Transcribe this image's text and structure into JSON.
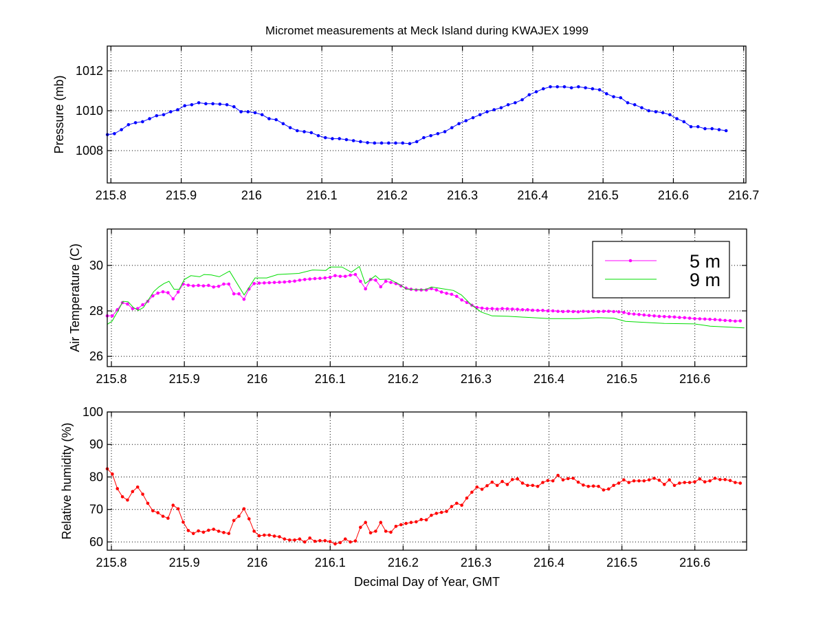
{
  "chart_data": {
    "title": "Micromet measurements at Meck Island during KWAJEX 1999",
    "xlabel": "Decimal Day of Year, GMT",
    "panels": [
      {
        "type": "line",
        "ylabel": "Pressure (mb)",
        "xlim": [
          215.7948,
          216.7032
        ],
        "ylim": [
          1006.38,
          1013.24
        ],
        "xticks": [
          "215.8",
          "215.9",
          "216",
          "216.1",
          "216.2",
          "216.3",
          "216.4",
          "216.5",
          "216.6",
          "216.7"
        ],
        "yticks": [
          "1008",
          "1010",
          "1012"
        ],
        "grid": true,
        "series": [
          {
            "name": "Pressure",
            "color": "#0000ff",
            "marker": "dot",
            "x_start": 215.795,
            "x_step": 0.01,
            "values": [
              1008.8,
              1008.85,
              1009.05,
              1009.3,
              1009.4,
              1009.45,
              1009.6,
              1009.75,
              1009.8,
              1009.95,
              1010.05,
              1010.25,
              1010.3,
              1010.4,
              1010.35,
              1010.35,
              1010.33,
              1010.3,
              1010.2,
              1009.95,
              1009.95,
              1009.9,
              1009.8,
              1009.6,
              1009.55,
              1009.35,
              1009.15,
              1009.0,
              1008.95,
              1008.9,
              1008.75,
              1008.65,
              1008.6,
              1008.6,
              1008.55,
              1008.5,
              1008.45,
              1008.4,
              1008.38,
              1008.38,
              1008.38,
              1008.38,
              1008.38,
              1008.35,
              1008.45,
              1008.65,
              1008.75,
              1008.85,
              1008.95,
              1009.15,
              1009.35,
              1009.5,
              1009.65,
              1009.8,
              1009.95,
              1010.05,
              1010.15,
              1010.3,
              1010.4,
              1010.55,
              1010.8,
              1010.95,
              1011.1,
              1011.2,
              1011.2,
              1011.2,
              1011.15,
              1011.2,
              1011.15,
              1011.1,
              1011.05,
              1010.85,
              1010.7,
              1010.65,
              1010.4,
              1010.3,
              1010.15,
              1010.0,
              1009.95,
              1009.9,
              1009.8,
              1009.6,
              1009.45,
              1009.2,
              1009.2,
              1009.1,
              1009.1,
              1009.05,
              1009.0
            ]
          }
        ]
      },
      {
        "type": "line",
        "ylabel": "Air Temperature (C)",
        "xlim": [
          215.7943,
          216.671
        ],
        "ylim": [
          25.55,
          31.6
        ],
        "xticks": [
          "215.8",
          "215.9",
          "216",
          "216.1",
          "216.2",
          "216.3",
          "216.4",
          "216.5",
          "216.6"
        ],
        "yticks": [
          "26",
          "28",
          "30"
        ],
        "grid": true,
        "legend": {
          "placement": "top-right",
          "entries": [
            "5 m",
            "9 m"
          ]
        },
        "series": [
          {
            "name": "5 m",
            "color": "#ff00ff",
            "marker": "dot",
            "x_start": 215.7943,
            "x_step": 0.006944,
            "values": [
              27.78,
              27.78,
              28.05,
              28.36,
              28.3,
              28.1,
              28.1,
              28.27,
              28.42,
              28.66,
              28.78,
              28.84,
              28.8,
              28.53,
              28.83,
              29.18,
              29.13,
              29.1,
              29.12,
              29.1,
              29.12,
              29.05,
              29.08,
              29.18,
              29.18,
              28.75,
              28.75,
              28.51,
              28.96,
              29.2,
              29.22,
              29.23,
              29.24,
              29.25,
              29.26,
              29.27,
              29.29,
              29.31,
              29.35,
              29.38,
              29.4,
              29.42,
              29.43,
              29.45,
              29.48,
              29.55,
              29.52,
              29.52,
              29.57,
              29.6,
              29.3,
              28.97,
              29.38,
              29.35,
              29.06,
              29.3,
              29.25,
              29.2,
              29.1,
              29.0,
              28.95,
              28.92,
              28.92,
              28.92,
              28.98,
              28.92,
              28.83,
              28.77,
              28.73,
              28.64,
              28.48,
              28.37,
              28.25,
              28.15,
              28.12,
              28.1,
              28.1,
              28.08,
              28.1,
              28.09,
              28.08,
              28.07,
              28.05,
              28.05,
              28.03,
              28.02,
              28.02,
              28.0,
              28.0,
              27.98,
              27.97,
              27.98,
              27.97,
              27.96,
              27.98,
              27.97,
              27.98,
              27.97,
              27.98,
              27.98,
              27.97,
              27.96,
              27.93,
              27.88,
              27.86,
              27.84,
              27.82,
              27.8,
              27.78,
              27.76,
              27.75,
              27.74,
              27.73,
              27.71,
              27.7,
              27.68,
              27.66,
              27.65,
              27.64,
              27.63,
              27.62,
              27.6,
              27.58,
              27.57,
              27.55,
              27.56
            ]
          },
          {
            "name": "9 m",
            "color": "#00dd00",
            "marker": "none",
            "x": [
              215.794,
              215.801,
              215.809,
              215.816,
              215.823,
              215.83,
              215.837,
              215.844,
              215.851,
              215.858,
              215.865,
              215.872,
              215.879,
              215.886,
              215.893,
              215.9,
              215.909,
              215.921,
              215.927,
              215.937,
              215.948,
              215.962,
              215.982,
              215.997,
              216.013,
              216.028,
              216.057,
              216.076,
              216.094,
              216.1,
              216.116,
              216.129,
              216.14,
              216.148,
              216.162,
              216.168,
              216.181,
              216.196,
              216.205,
              216.23,
              216.239,
              216.253,
              216.269,
              216.28,
              216.294,
              216.307,
              216.322,
              216.344,
              216.401,
              216.439,
              216.467,
              216.489,
              216.505,
              216.558,
              216.599,
              216.621,
              216.668
            ],
            "y": [
              27.4,
              27.55,
              28.0,
              28.42,
              28.4,
              28.15,
              28.02,
              28.15,
              28.5,
              28.85,
              29.05,
              29.2,
              29.3,
              28.95,
              28.95,
              29.38,
              29.55,
              29.5,
              29.6,
              29.58,
              29.5,
              29.75,
              28.7,
              29.45,
              29.45,
              29.6,
              29.65,
              29.8,
              29.78,
              29.93,
              29.93,
              29.7,
              29.95,
              29.2,
              29.55,
              29.38,
              29.4,
              29.15,
              28.95,
              28.93,
              29.05,
              28.98,
              28.9,
              28.7,
              28.25,
              27.95,
              27.78,
              27.76,
              27.66,
              27.66,
              27.7,
              27.68,
              27.54,
              27.45,
              27.43,
              27.33,
              27.25
            ]
          }
        ]
      },
      {
        "type": "line",
        "ylabel": "Relative humidity (%)",
        "xlim": [
          215.7943,
          216.671
        ],
        "ylim": [
          57.45,
          100
        ],
        "xticks": [
          "215.8",
          "215.9",
          "216",
          "216.1",
          "216.2",
          "216.3",
          "216.4",
          "216.5",
          "216.6"
        ],
        "yticks": [
          "60",
          "70",
          "80",
          "90",
          "100"
        ],
        "grid": true,
        "series": [
          {
            "name": "RH",
            "color": "#ff0000",
            "marker": "dot",
            "x_start": 215.7943,
            "x_step": 0.006944,
            "values": [
              82.5,
              80.9,
              76.4,
              73.9,
              72.9,
              75.5,
              76.9,
              74.7,
              71.9,
              69.6,
              69.0,
              67.9,
              67.3,
              71.3,
              70.2,
              66.1,
              63.5,
              62.6,
              63.4,
              63.0,
              63.6,
              63.9,
              63.3,
              62.9,
              62.6,
              66.6,
              67.9,
              70.2,
              67.1,
              63.3,
              61.9,
              62.1,
              62.1,
              61.8,
              61.6,
              60.9,
              60.6,
              60.6,
              60.9,
              60.0,
              61.2,
              60.2,
              60.4,
              60.4,
              60.1,
              59.4,
              59.8,
              60.9,
              60.0,
              60.3,
              64.5,
              66.0,
              62.8,
              63.3,
              66.0,
              63.3,
              63.0,
              64.8,
              65.3,
              65.7,
              66.0,
              66.2,
              66.9,
              66.8,
              68.2,
              68.8,
              69.1,
              69.4,
              70.9,
              71.9,
              71.3,
              73.5,
              75.3,
              76.9,
              76.2,
              77.3,
              78.4,
              77.4,
              78.6,
              77.7,
              79.2,
              79.4,
              78.1,
              77.4,
              77.4,
              77.1,
              78.3,
              78.9,
              78.8,
              80.5,
              79.1,
              79.5,
              79.6,
              78.4,
              77.5,
              77.1,
              77.2,
              77.1,
              76.0,
              76.3,
              77.4,
              78.1,
              79.1,
              78.3,
              78.8,
              78.8,
              78.8,
              79.1,
              79.6,
              79.0,
              77.7,
              79.1,
              77.4,
              78.1,
              78.3,
              78.3,
              78.5,
              79.4,
              78.5,
              78.8,
              79.6,
              79.2,
              79.2,
              78.9,
              78.3,
              78.1
            ]
          }
        ]
      }
    ]
  }
}
